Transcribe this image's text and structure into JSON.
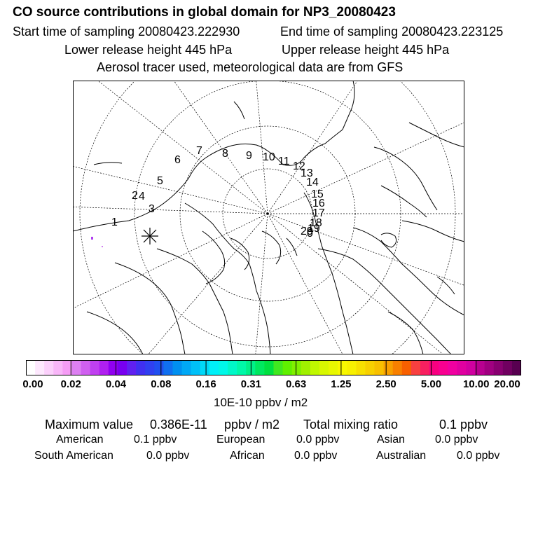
{
  "title": "CO  source contributions in global domain for NP3_20080423",
  "start_time": "Start time of sampling 20080423.222930",
  "end_time": "End time of sampling 20080423.223125",
  "lower_height": "Lower release height  445 hPa",
  "upper_height": "Upper release height  445 hPa",
  "aerosol_note": "Aerosol tracer used, meteorological data are from GFS",
  "map": {
    "trajectory_labels": [
      "0",
      "1",
      "2",
      "3",
      "4",
      "5",
      "6",
      "7",
      "8",
      "9",
      "10",
      "11",
      "12",
      "13",
      "14",
      "15",
      "16",
      "17",
      "18",
      "19",
      "20"
    ],
    "marker_symbol": "asterisk-icon"
  },
  "colorbar": {
    "colors": [
      "#ffffff",
      "#fde8fd",
      "#fbd0fb",
      "#f8b6f8",
      "#f59cf5",
      "#dd80f2",
      "#d060f0",
      "#c040f0",
      "#b020f0",
      "#9000f0",
      "#7800f0",
      "#6020f0",
      "#4030f0",
      "#3040f0",
      "#2050f0",
      "#1070f0",
      "#0090f0",
      "#00a8f5",
      "#00c0f8",
      "#00d8f8",
      "#00f0f8",
      "#00f8e8",
      "#00f8c8",
      "#00f8a8",
      "#00f088",
      "#00e860",
      "#00e040",
      "#40e820",
      "#60f000",
      "#80f000",
      "#a0f000",
      "#c0f800",
      "#d8f800",
      "#e8f800",
      "#f8f800",
      "#f8f000",
      "#f8e000",
      "#f8d000",
      "#f8c000",
      "#f8a000",
      "#f88000",
      "#f86000",
      "#f84040",
      "#f82060",
      "#f80080",
      "#f80090",
      "#f000a0",
      "#e000a0",
      "#d000a0",
      "#b80090",
      "#a00080",
      "#880070",
      "#700060",
      "#580050"
    ],
    "ticks": [
      "0.00",
      "0.02",
      "0.04",
      "0.08",
      "0.16",
      "0.31",
      "0.63",
      "1.25",
      "2.50",
      "5.00",
      "10.00",
      "20.00"
    ],
    "unit": "10E-10 ppbv / m2"
  },
  "summary": {
    "max_label": "Maximum value",
    "max_value": "0.386E-11",
    "max_unit": "ppbv / m2",
    "total_label": "Total mixing ratio",
    "total_value": "0.1 ppbv"
  },
  "sources": [
    {
      "name": "American",
      "value": "0.1 ppbv"
    },
    {
      "name": "European",
      "value": "0.0 ppbv"
    },
    {
      "name": "Asian",
      "value": "0.0 ppbv"
    },
    {
      "name": "South American",
      "value": "0.0 ppbv"
    },
    {
      "name": "African",
      "value": "0.0 ppbv"
    },
    {
      "name": "Australian",
      "value": "0.0 ppbv"
    }
  ]
}
